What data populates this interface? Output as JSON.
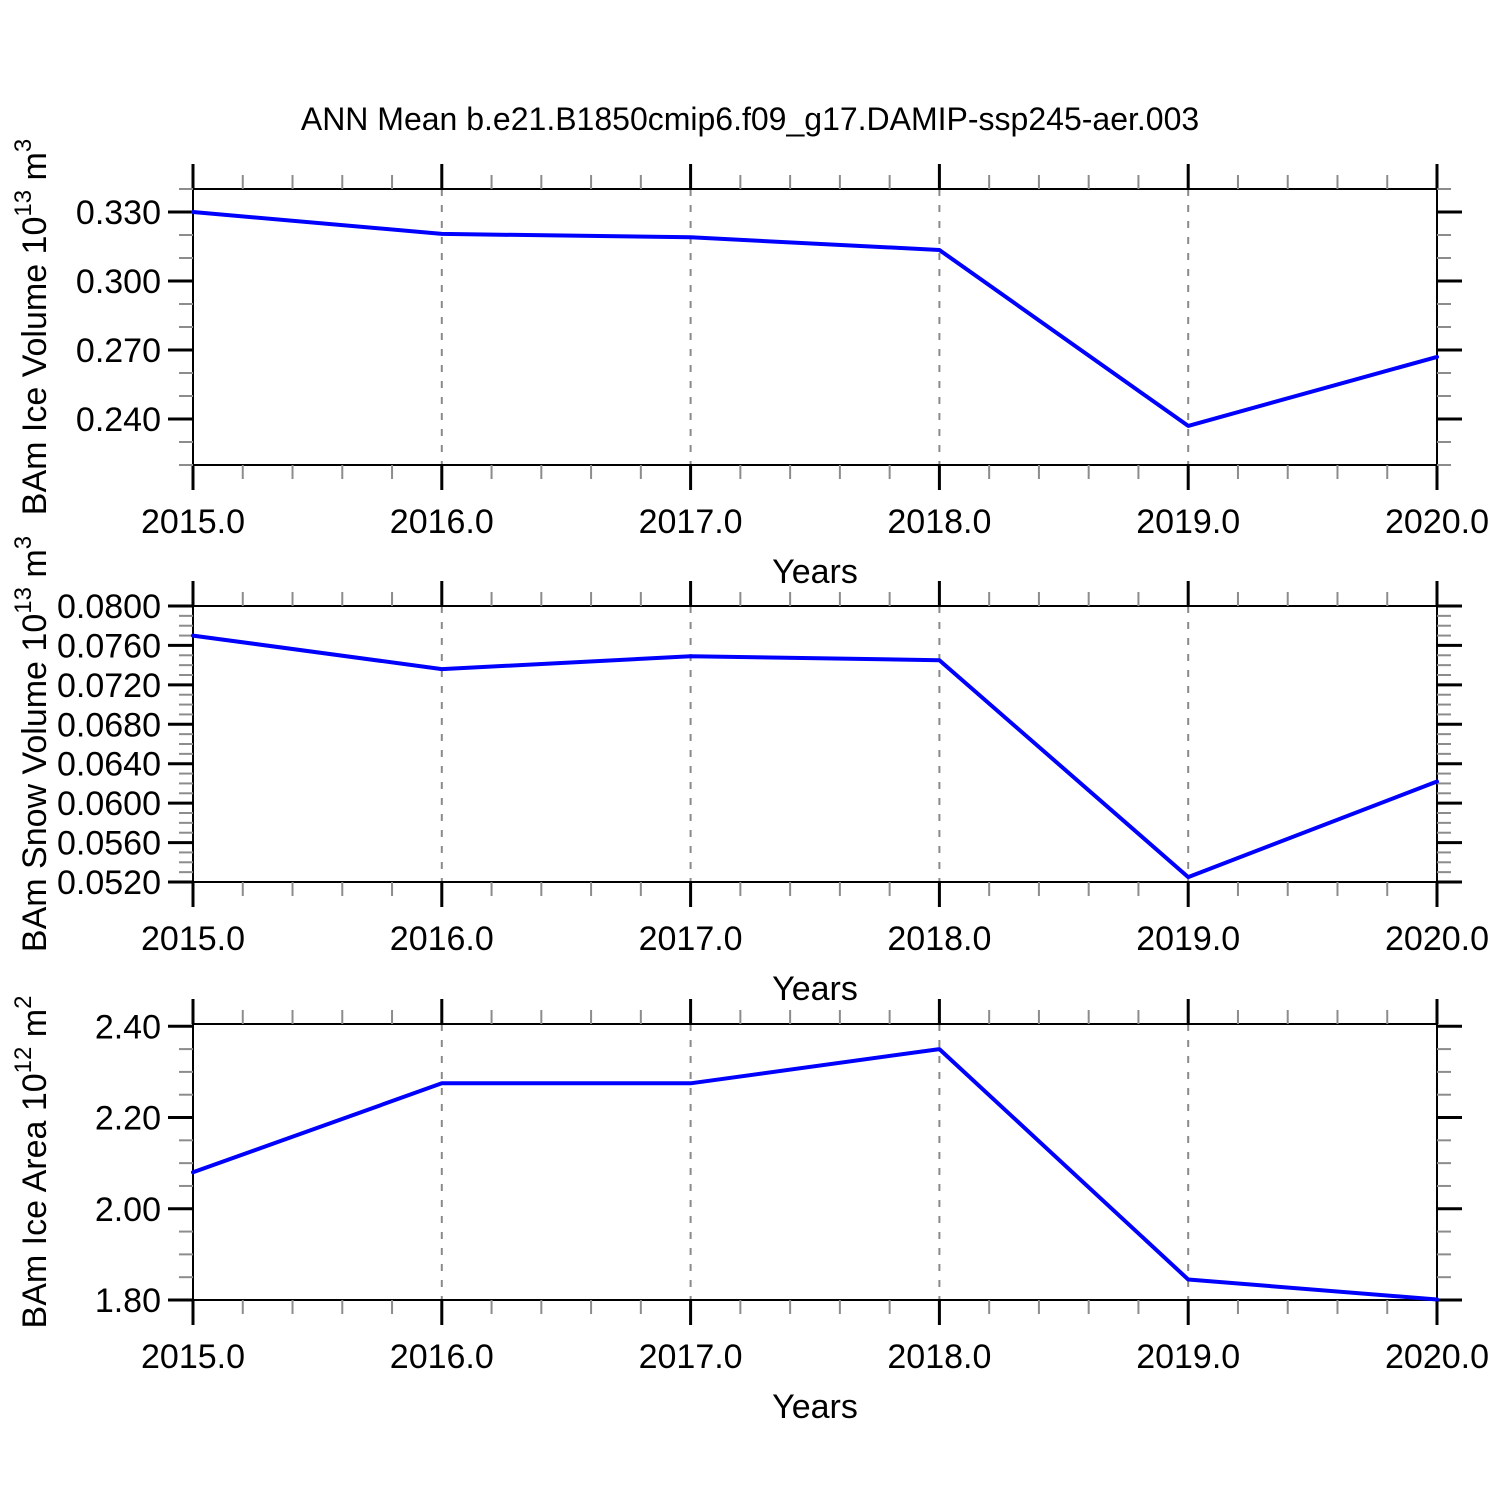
{
  "title": "ANN Mean b.e21.B1850cmip6.f09_g17.DAMIP-ssp245-aer.003",
  "colors": {
    "line": "#0000ff",
    "axis": "#000000",
    "major_tick": "#000000",
    "minor_tick": "#8c8c8c",
    "gridline": "#8a8a8a",
    "background": "#ffffff",
    "text": "#000000"
  },
  "x_axis": {
    "label": "Years",
    "ticks": [
      2015,
      2016,
      2017,
      2018,
      2019,
      2020
    ],
    "tick_labels": [
      "2015.0",
      "2016.0",
      "2017.0",
      "2018.0",
      "2019.0",
      "2020.0"
    ],
    "minor_step": 0.2,
    "xlim": [
      2015,
      2020
    ],
    "gridlines_x": [
      2016,
      2017,
      2018,
      2019
    ]
  },
  "chart_data": [
    {
      "type": "line",
      "ylabel": "BAm Ice Volume 10^13 m^3",
      "ylabel_parts": [
        {
          "t": "BAm Ice Volume 10",
          "sup": false
        },
        {
          "t": "13",
          "sup": true
        },
        {
          "t": " m",
          "sup": false
        },
        {
          "t": "3",
          "sup": true
        }
      ],
      "xlabel": "Years",
      "x": [
        2015,
        2016,
        2017,
        2018,
        2019,
        2020
      ],
      "values": [
        0.33,
        0.3205,
        0.319,
        0.3135,
        0.237,
        0.267
      ],
      "ylim": [
        0.22,
        0.34
      ],
      "y_major_ticks": [
        0.24,
        0.27,
        0.3,
        0.33
      ],
      "y_tick_labels": [
        "0.240",
        "0.270",
        "0.300",
        "0.330"
      ],
      "y_minor_step": 0.01,
      "grid": "vertical-dashed",
      "legend": "none"
    },
    {
      "type": "line",
      "ylabel": "BAm Snow Volume 10^13 m^3",
      "ylabel_parts": [
        {
          "t": "BAm Snow Volume 10",
          "sup": false
        },
        {
          "t": "13",
          "sup": true
        },
        {
          "t": " m",
          "sup": false
        },
        {
          "t": "3",
          "sup": true
        }
      ],
      "xlabel": "Years",
      "x": [
        2015,
        2016,
        2017,
        2018,
        2019,
        2020
      ],
      "values": [
        0.077,
        0.0736,
        0.0749,
        0.0745,
        0.0525,
        0.0622
      ],
      "ylim": [
        0.052,
        0.08
      ],
      "y_major_ticks": [
        0.052,
        0.056,
        0.06,
        0.064,
        0.068,
        0.072,
        0.076,
        0.08
      ],
      "y_tick_labels": [
        "0.0520",
        "0.0560",
        "0.0600",
        "0.0640",
        "0.0680",
        "0.0720",
        "0.0760",
        "0.0800"
      ],
      "y_minor_step": 0.001,
      "grid": "vertical-dashed",
      "legend": "none"
    },
    {
      "type": "line",
      "ylabel": "BAm Ice Area 10^12 m^2",
      "ylabel_parts": [
        {
          "t": "BAm Ice Area 10",
          "sup": false
        },
        {
          "t": "12",
          "sup": true
        },
        {
          "t": " m",
          "sup": false
        },
        {
          "t": "2",
          "sup": true
        }
      ],
      "xlabel": "Years",
      "x": [
        2015,
        2016,
        2017,
        2018,
        2019,
        2020
      ],
      "values": [
        2.08,
        2.275,
        2.275,
        2.35,
        1.845,
        1.801
      ],
      "ylim": [
        1.8,
        2.405
      ],
      "y_major_ticks": [
        1.8,
        2.0,
        2.2,
        2.4
      ],
      "y_tick_labels": [
        "1.80",
        "2.00",
        "2.20",
        "2.40"
      ],
      "y_minor_step": 0.05,
      "grid": "vertical-dashed",
      "legend": "none"
    }
  ]
}
